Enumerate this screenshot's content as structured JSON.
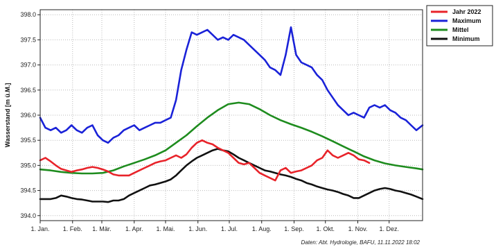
{
  "chart_data": {
    "type": "line",
    "ylabel": "Wasserstand [m ü.M.]",
    "source": "Daten: Abt. Hydrologie, BAFU, 11.11.2022 18:02",
    "ylim": [
      393.9,
      398.1
    ],
    "xlim": [
      0,
      366
    ],
    "yticks": [
      "398.0",
      "397.5",
      "397.0",
      "396.5",
      "396.0",
      "395.5",
      "395.0",
      "394.5",
      "394.0"
    ],
    "ytick_values": [
      398.0,
      397.5,
      397.0,
      396.5,
      396.0,
      395.5,
      395.0,
      394.5,
      394.0
    ],
    "xticks": [
      "1. Jan.",
      "1. Feb.",
      "1. Mär.",
      "1. Apr.",
      "1. Mai.",
      "1. Jun.",
      "1. Jul.",
      "1. Aug.",
      "1. Sep.",
      "1. Okt.",
      "1. Nov.",
      "1. Dez."
    ],
    "xtick_days": [
      0,
      31,
      59,
      90,
      120,
      151,
      181,
      212,
      243,
      273,
      304,
      334
    ],
    "grid": true,
    "legend_position": "right-top",
    "series": [
      {
        "name": "Jahr 2022",
        "color": "#e8232a",
        "x": [
          0,
          5,
          10,
          15,
          20,
          25,
          30,
          35,
          40,
          45,
          50,
          55,
          60,
          65,
          70,
          75,
          80,
          85,
          90,
          95,
          100,
          105,
          110,
          115,
          120,
          125,
          130,
          135,
          140,
          145,
          150,
          155,
          160,
          165,
          170,
          175,
          180,
          185,
          190,
          195,
          200,
          205,
          210,
          215,
          220,
          225,
          230,
          235,
          240,
          245,
          250,
          255,
          260,
          265,
          270,
          275,
          280,
          285,
          290,
          295,
          300,
          305,
          310,
          315
        ],
        "y": [
          395.1,
          395.15,
          395.08,
          395.0,
          394.93,
          394.9,
          394.87,
          394.9,
          394.92,
          394.95,
          394.97,
          394.95,
          394.92,
          394.88,
          394.82,
          394.8,
          394.8,
          394.8,
          394.85,
          394.9,
          394.95,
          395.0,
          395.05,
          395.08,
          395.1,
          395.15,
          395.2,
          395.15,
          395.22,
          395.35,
          395.45,
          395.5,
          395.45,
          395.42,
          395.35,
          395.3,
          395.25,
          395.15,
          395.05,
          395.02,
          395.05,
          394.95,
          394.85,
          394.8,
          394.75,
          394.7,
          394.9,
          394.95,
          394.85,
          394.88,
          394.9,
          394.95,
          395.0,
          395.1,
          395.15,
          395.3,
          395.2,
          395.15,
          395.2,
          395.25,
          395.2,
          395.12,
          395.1,
          395.05
        ]
      },
      {
        "name": "Maximum",
        "color": "#1a22d8",
        "x": [
          0,
          5,
          10,
          15,
          20,
          25,
          30,
          35,
          40,
          45,
          50,
          55,
          60,
          65,
          70,
          75,
          80,
          85,
          90,
          95,
          100,
          105,
          110,
          115,
          120,
          125,
          130,
          135,
          140,
          145,
          150,
          155,
          160,
          165,
          170,
          175,
          180,
          185,
          190,
          195,
          200,
          205,
          210,
          215,
          220,
          225,
          230,
          235,
          240,
          245,
          250,
          255,
          260,
          265,
          270,
          275,
          280,
          285,
          290,
          295,
          300,
          305,
          310,
          315,
          320,
          325,
          330,
          335,
          340,
          345,
          350,
          355,
          360,
          366
        ],
        "y": [
          395.95,
          395.75,
          395.7,
          395.75,
          395.65,
          395.7,
          395.8,
          395.7,
          395.65,
          395.75,
          395.8,
          395.6,
          395.5,
          395.45,
          395.55,
          395.6,
          395.7,
          395.75,
          395.8,
          395.7,
          395.75,
          395.8,
          395.85,
          395.85,
          395.9,
          395.95,
          396.3,
          396.9,
          397.3,
          397.65,
          397.6,
          397.65,
          397.7,
          397.6,
          397.5,
          397.55,
          397.5,
          397.6,
          397.55,
          397.5,
          397.4,
          397.3,
          397.2,
          397.1,
          396.95,
          396.9,
          396.8,
          397.2,
          397.75,
          397.2,
          397.05,
          397.0,
          396.95,
          396.8,
          396.7,
          396.5,
          396.35,
          396.2,
          396.1,
          396.0,
          396.05,
          396.0,
          395.95,
          396.15,
          396.2,
          396.15,
          396.2,
          396.1,
          396.05,
          395.95,
          395.9,
          395.8,
          395.7,
          395.8
        ]
      },
      {
        "name": "Mittel",
        "color": "#1e8c1e",
        "x": [
          0,
          10,
          20,
          30,
          40,
          50,
          60,
          70,
          80,
          90,
          100,
          110,
          120,
          130,
          140,
          150,
          160,
          170,
          180,
          190,
          200,
          210,
          220,
          230,
          240,
          250,
          260,
          270,
          280,
          290,
          300,
          310,
          320,
          330,
          340,
          350,
          360,
          366
        ],
        "y": [
          394.92,
          394.9,
          394.87,
          394.85,
          394.84,
          394.84,
          394.85,
          394.9,
          394.98,
          395.05,
          395.12,
          395.2,
          395.3,
          395.45,
          395.6,
          395.78,
          395.95,
          396.1,
          396.22,
          396.25,
          396.22,
          396.12,
          396.0,
          395.9,
          395.82,
          395.75,
          395.67,
          395.58,
          395.48,
          395.38,
          395.28,
          395.18,
          395.1,
          395.04,
          395.0,
          394.97,
          394.94,
          394.92
        ]
      },
      {
        "name": "Minimum",
        "color": "#111111",
        "x": [
          0,
          5,
          10,
          15,
          20,
          25,
          30,
          35,
          40,
          45,
          50,
          55,
          60,
          65,
          70,
          75,
          80,
          85,
          90,
          95,
          100,
          105,
          110,
          115,
          120,
          125,
          130,
          135,
          140,
          145,
          150,
          155,
          160,
          165,
          170,
          175,
          180,
          185,
          190,
          195,
          200,
          205,
          210,
          215,
          220,
          225,
          230,
          235,
          240,
          245,
          250,
          255,
          260,
          265,
          270,
          275,
          280,
          285,
          290,
          295,
          300,
          305,
          310,
          315,
          320,
          325,
          330,
          335,
          340,
          345,
          350,
          355,
          360,
          366
        ],
        "y": [
          394.33,
          394.33,
          394.33,
          394.35,
          394.4,
          394.38,
          394.35,
          394.33,
          394.32,
          394.3,
          394.28,
          394.28,
          394.28,
          394.27,
          394.3,
          394.3,
          394.33,
          394.4,
          394.45,
          394.5,
          394.55,
          394.6,
          394.62,
          394.65,
          394.68,
          394.72,
          394.8,
          394.9,
          395.0,
          395.08,
          395.15,
          395.2,
          395.25,
          395.3,
          395.33,
          395.3,
          395.28,
          395.22,
          395.15,
          395.1,
          395.05,
          395.0,
          394.95,
          394.9,
          394.88,
          394.85,
          394.82,
          394.8,
          394.77,
          394.73,
          394.7,
          394.65,
          394.62,
          394.58,
          394.55,
          394.52,
          394.5,
          394.47,
          394.43,
          394.4,
          394.35,
          394.35,
          394.4,
          394.45,
          394.5,
          394.53,
          394.55,
          394.53,
          394.5,
          394.48,
          394.45,
          394.42,
          394.38,
          394.33
        ]
      }
    ]
  }
}
